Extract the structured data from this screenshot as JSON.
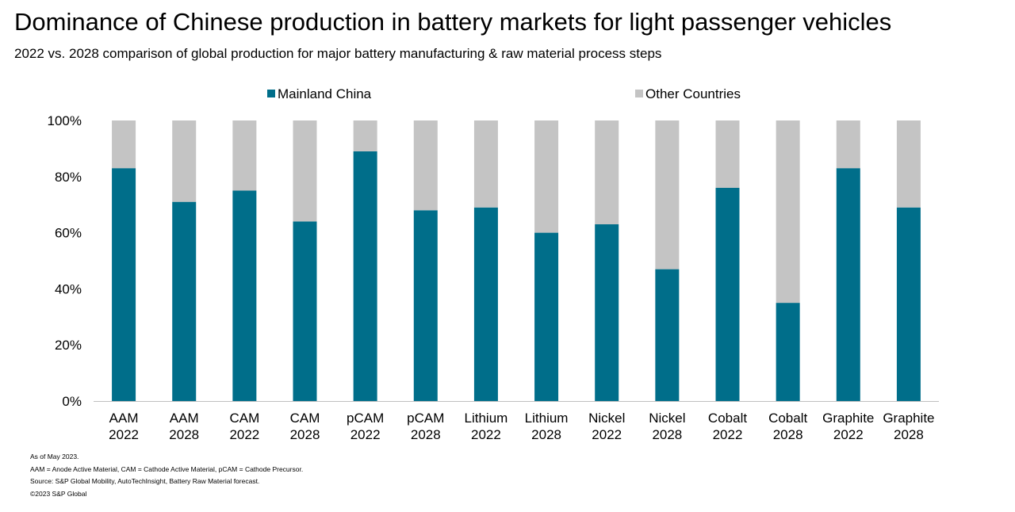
{
  "chart_data": {
    "type": "bar",
    "stacked": true,
    "title": "Dominance of Chinese production in battery markets for light passenger vehicles",
    "subtitle": "2022 vs. 2028 comparison of global production for major battery manufacturing & raw material process steps",
    "categories": [
      [
        "AAM",
        "2022"
      ],
      [
        "AAM",
        "2028"
      ],
      [
        "CAM",
        "2022"
      ],
      [
        "CAM",
        "2028"
      ],
      [
        "pCAM",
        "2022"
      ],
      [
        "pCAM",
        "2028"
      ],
      [
        "Lithium",
        "2022"
      ],
      [
        "Lithium",
        "2028"
      ],
      [
        "Nickel",
        "2022"
      ],
      [
        "Nickel",
        "2028"
      ],
      [
        "Cobalt",
        "2022"
      ],
      [
        "Cobalt",
        "2028"
      ],
      [
        "Graphite",
        "2022"
      ],
      [
        "Graphite",
        "2028"
      ]
    ],
    "series": [
      {
        "name": "Mainland China",
        "color": "#006E8A",
        "values": [
          83,
          71,
          75,
          64,
          89,
          68,
          69,
          60,
          63,
          47,
          76,
          35,
          83,
          69
        ]
      },
      {
        "name": "Other Countries",
        "color": "#C4C4C4",
        "values": [
          17,
          29,
          25,
          36,
          11,
          32,
          31,
          40,
          37,
          53,
          24,
          65,
          17,
          31
        ]
      }
    ],
    "ylim": [
      0,
      100
    ],
    "yticks": [
      "0%",
      "20%",
      "40%",
      "60%",
      "80%",
      "100%"
    ],
    "xlabel": "",
    "ylabel": "",
    "legend": "top-center",
    "grid": false
  },
  "notes": [
    "As of May 2023.",
    "AAM = Anode Active Material, CAM = Cathode Active Material, pCAM = Cathode Precursor.",
    "Source: S&P Global Mobility, AutoTechInsight, Battery Raw Material forecast.",
    "©2023 S&P Global"
  ]
}
